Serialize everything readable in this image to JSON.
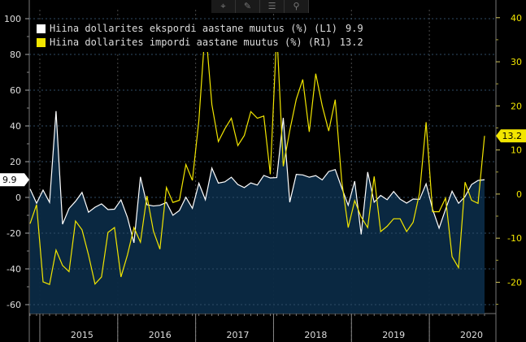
{
  "toolbar": {
    "icons": [
      "crosshair-icon",
      "draw-icon",
      "table-icon",
      "zoom-icon"
    ]
  },
  "legend": [
    {
      "label": "Hiina dollarites ekspordi aastane muutus (%) (L1)",
      "value": "9.9",
      "color": "#ffffff"
    },
    {
      "label": "Hiina dollarites impordi aastane muutus (%) (R1)",
      "value": "13.2",
      "color": "#f2e600"
    }
  ],
  "chart_data": {
    "type": "line",
    "x": [
      "2014-11",
      "2014-12",
      "2015-01",
      "2015-02",
      "2015-03",
      "2015-04",
      "2015-05",
      "2015-06",
      "2015-07",
      "2015-08",
      "2015-09",
      "2015-10",
      "2015-11",
      "2015-12",
      "2016-01",
      "2016-02",
      "2016-03",
      "2016-04",
      "2016-05",
      "2016-06",
      "2016-07",
      "2016-08",
      "2016-09",
      "2016-10",
      "2016-11",
      "2016-12",
      "2017-01",
      "2017-02",
      "2017-03",
      "2017-04",
      "2017-05",
      "2017-06",
      "2017-07",
      "2017-08",
      "2017-09",
      "2017-10",
      "2017-11",
      "2017-12",
      "2018-01",
      "2018-02",
      "2018-03",
      "2018-04",
      "2018-05",
      "2018-06",
      "2018-07",
      "2018-08",
      "2018-09",
      "2018-10",
      "2018-11",
      "2018-12",
      "2019-01",
      "2019-02",
      "2019-03",
      "2019-04",
      "2019-05",
      "2019-06",
      "2019-07",
      "2019-08",
      "2019-09",
      "2019-10",
      "2019-11",
      "2019-12",
      "2020-01",
      "2020-02",
      "2020-03",
      "2020-04",
      "2020-05",
      "2020-06",
      "2020-07",
      "2020-08",
      "2020-09"
    ],
    "series": [
      {
        "name": "Hiina dollarites ekspordi aastane muutus (%) (L1)",
        "axis": "left",
        "color": "#ffffff",
        "values": [
          4.7,
          -3.3,
          4.1,
          -2.8,
          48.3,
          -15.0,
          -6.2,
          -2.2,
          2.8,
          -8.3,
          -5.5,
          -3.6,
          -6.8,
          -6.6,
          -1.4,
          -11.2,
          -25.4,
          11.5,
          -4.1,
          -4.8,
          -4.4,
          -2.8,
          -10.0,
          -7.3,
          0.1,
          -6.1,
          7.9,
          -1.3,
          16.4,
          8.0,
          8.7,
          11.3,
          7.2,
          5.5,
          8.1,
          6.9,
          12.3,
          10.9,
          11.1,
          44.5,
          -2.7,
          12.9,
          12.6,
          11.3,
          12.2,
          9.8,
          14.5,
          15.6,
          5.4,
          -4.4,
          9.1,
          -20.7,
          14.2,
          -2.7,
          1.1,
          -1.3,
          3.3,
          -1.0,
          -3.2,
          -0.9,
          -1.1,
          7.6,
          -6.6,
          -17.2,
          -6.6,
          3.5,
          -3.3,
          0.5,
          7.2,
          9.5,
          9.9
        ]
      }
    ],
    "series_right": [
      {
        "name": "Hiina dollarites impordi aastane muutus (%) (R1)",
        "axis": "right",
        "color": "#f2e600",
        "values": [
          -6.7,
          -2.4,
          -19.9,
          -20.5,
          -12.7,
          -16.2,
          -17.6,
          -6.1,
          -8.1,
          -13.8,
          -20.4,
          -18.8,
          -8.7,
          -7.6,
          -18.8,
          -13.8,
          -7.6,
          -10.9,
          -0.4,
          -8.4,
          -12.5,
          1.5,
          -1.9,
          -1.4,
          6.7,
          3.1,
          16.7,
          38.1,
          20.3,
          11.9,
          14.8,
          17.2,
          11.0,
          13.3,
          18.7,
          17.2,
          17.7,
          4.5,
          36.9,
          6.3,
          14.4,
          21.5,
          26.0,
          14.1,
          27.3,
          20.0,
          14.3,
          21.4,
          3.0,
          -7.6,
          -1.5,
          -5.2,
          -7.6,
          4.0,
          -8.5,
          -7.3,
          -5.6,
          -5.6,
          -8.5,
          -6.4,
          0.3,
          16.3,
          -4.0,
          -4.0,
          -0.9,
          -14.2,
          -16.7,
          2.7,
          -1.4,
          -2.1,
          13.2
        ]
      }
    ],
    "x_tick_labels": [
      "2015",
      "2016",
      "2017",
      "2018",
      "2019",
      "2020"
    ],
    "ylim_left": [
      -65,
      105
    ],
    "yticks_left": [
      -60,
      -40,
      -20,
      0,
      20,
      40,
      60,
      80,
      100
    ],
    "ylim_right": [
      -27.1,
      41.8
    ],
    "yticks_right": [
      -20,
      -10,
      0,
      10,
      20,
      30,
      40
    ],
    "last_label_left": "9.9",
    "last_label_right": "13.2",
    "grid": true,
    "legend_position": "top-left"
  }
}
